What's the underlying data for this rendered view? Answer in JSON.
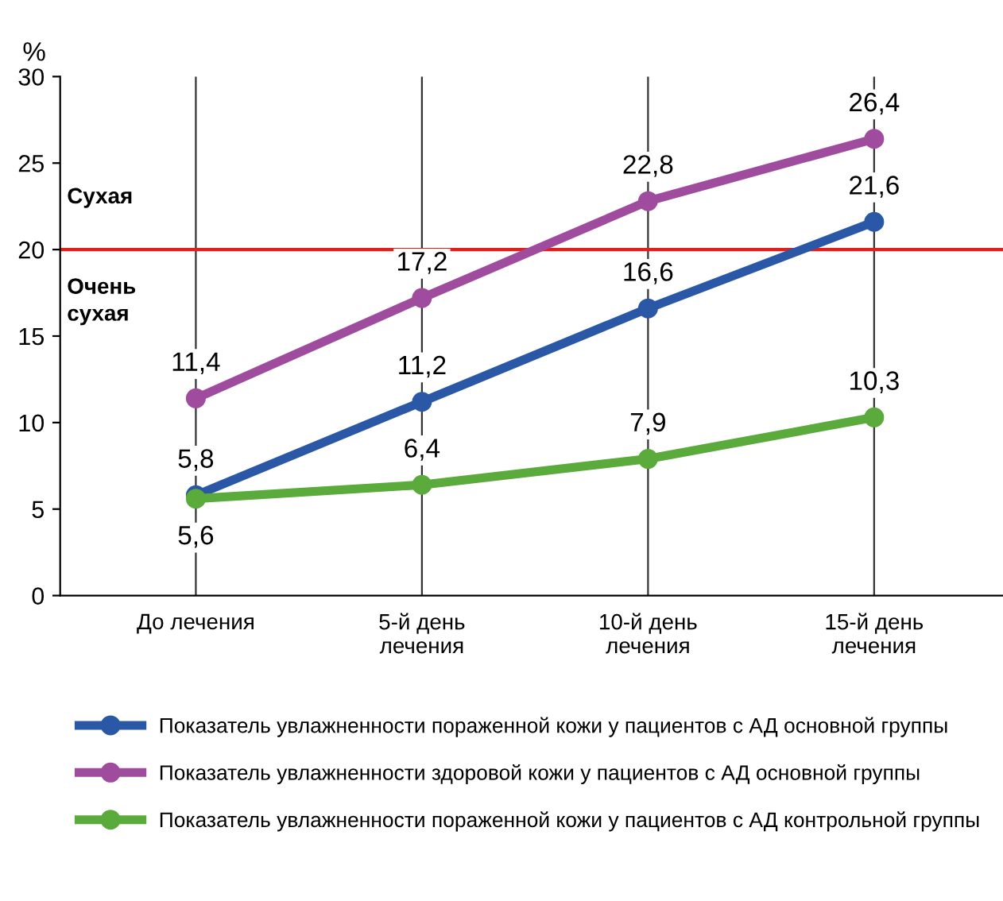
{
  "chart_data": {
    "type": "line",
    "ylabel": "%",
    "categories": [
      "До лечения",
      "5-й день\nлечения",
      "10-й день\nлечения",
      "15-й день\nлечения"
    ],
    "series": [
      {
        "name": "Показатель увлажненности пораженной кожи у пациентов с АД основной группы",
        "color": "#2a58a6",
        "values": [
          5.8,
          11.2,
          16.6,
          21.6
        ],
        "value_labels": [
          "5,8",
          "11,2",
          "16,6",
          "21,6"
        ]
      },
      {
        "name": "Показатель увлажненности здоровой кожи у пациентов с АД основной группы",
        "color": "#a04c9e",
        "values": [
          11.4,
          17.2,
          22.8,
          26.4
        ],
        "value_labels": [
          "11,4",
          "17,2",
          "22,8",
          "26,4"
        ]
      },
      {
        "name": "Показатель увлажненности пораженной кожи у пациентов с АД контрольной группы",
        "color": "#5aaa3c",
        "values": [
          5.6,
          6.4,
          7.9,
          10.3
        ],
        "value_labels": [
          "5,6",
          "6,4",
          "7,9",
          "10,3"
        ]
      }
    ],
    "ylim": [
      0,
      30
    ],
    "yticks": [
      0,
      5,
      10,
      15,
      20,
      25,
      30
    ],
    "grid": "x",
    "legend": "bottom",
    "marker": "circle",
    "line_style": "solid",
    "ref_lines": [
      {
        "axis": "y",
        "value": 20,
        "color": "#e0201c"
      }
    ],
    "annotations": [
      "Сухая",
      "Очень\nсухая"
    ]
  }
}
